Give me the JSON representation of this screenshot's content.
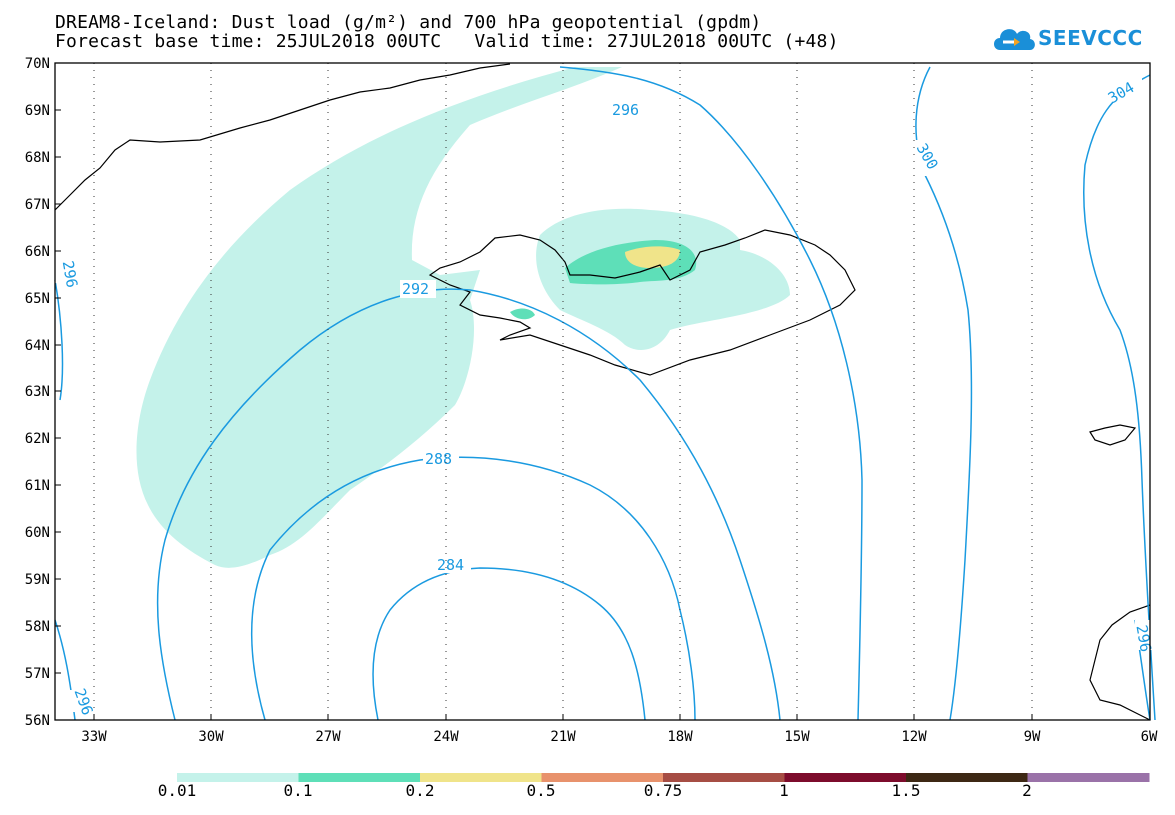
{
  "header": {
    "title_line1": "DREAM8-Iceland: Dust load (g/m²) and 700 hPa geopotential (gpdm)",
    "title_line2": "Forecast base time: 25JUL2018 00UTC   Valid time: 27JUL2018 00UTC (+48)"
  },
  "logo": {
    "text": "SEEVCCC",
    "icon": "cloud-arrow-icon",
    "color": "#1a8fd8"
  },
  "map": {
    "lat_labels": [
      "70N",
      "69N",
      "68N",
      "67N",
      "66N",
      "65N",
      "64N",
      "63N",
      "62N",
      "61N",
      "60N",
      "59N",
      "58N",
      "57N",
      "56N"
    ],
    "lon_labels": [
      "33W",
      "30W",
      "27W",
      "24W",
      "21W",
      "18W",
      "15W",
      "12W",
      "9W",
      "6W"
    ],
    "contour_labels": [
      "296",
      "300",
      "304",
      "292",
      "288",
      "284",
      "296",
      "296",
      "296"
    ],
    "colors": {
      "contour": "#1a9ae0",
      "dust_low": "#c4f2ea",
      "dust_mid": "#5edfb8",
      "dust_high": "#f0e48a",
      "coast": "#000000"
    }
  },
  "legend": {
    "labels": [
      "0.01",
      "0.1",
      "0.2",
      "0.5",
      "0.75",
      "1",
      "1.5",
      "2"
    ],
    "colors": [
      "#c4f2ea",
      "#5edfb8",
      "#f0e48a",
      "#e8926c",
      "#a64d44",
      "#7d0c2c",
      "#3d2814",
      "#9a72a8"
    ]
  }
}
